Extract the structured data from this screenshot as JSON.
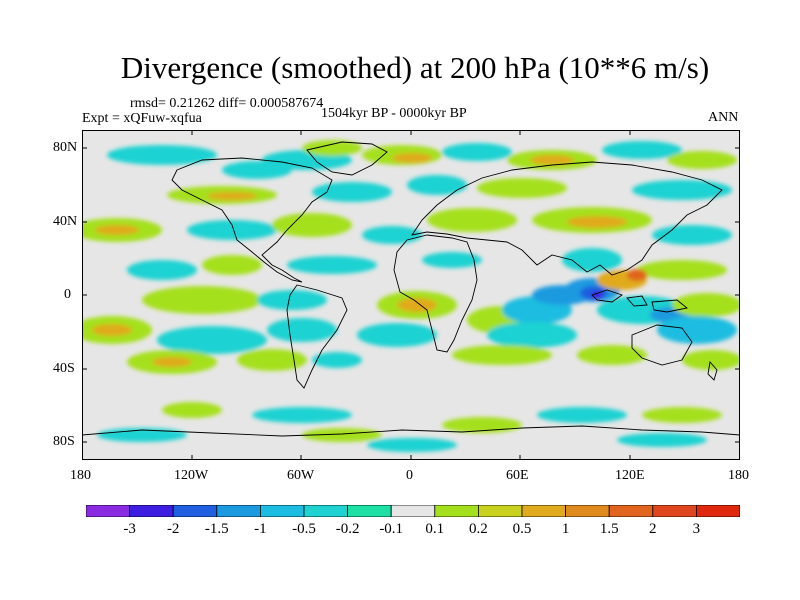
{
  "title": "Divergence (smoothed) at 200 hPa (10**6 m/s)",
  "stats": "rmsd= 0.21262 diff= 0.000587674",
  "experiment": "Expt = xQFuw-xqfua",
  "period": "1504kyr BP - 0000kyr BP",
  "season": "ANN",
  "lat_ticks": [
    "80N",
    "40N",
    "0",
    "40S",
    "80S"
  ],
  "lon_ticks": [
    "180",
    "120W",
    "60W",
    "0",
    "60E",
    "120E",
    "180"
  ],
  "colorbar": {
    "labels": [
      "-3",
      "-2",
      "-1.5",
      "-1",
      "-0.5",
      "-0.2",
      "-0.1",
      "0.1",
      "0.2",
      "0.5",
      "1",
      "1.5",
      "2",
      "3"
    ],
    "colors": [
      "#8a2be2",
      "#3d1ee0",
      "#1f5fe0",
      "#1c9ae0",
      "#1cbde0",
      "#1ed2d2",
      "#1ee0a5",
      "#e6e6e6",
      "#a5e01e",
      "#c8d21e",
      "#e0aa1e",
      "#e08a1e",
      "#e0641e",
      "#e0461e",
      "#e0280e"
    ]
  }
}
